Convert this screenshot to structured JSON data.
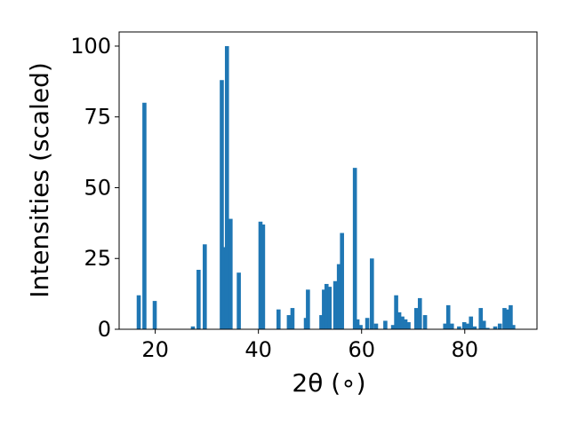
{
  "chart_data": {
    "type": "bar",
    "title": "",
    "xlabel": "2θ (∘)",
    "ylabel": "Intensities (scaled)",
    "xlim": [
      13,
      94
    ],
    "ylim": [
      0,
      105
    ],
    "x_ticks": [
      20,
      40,
      60,
      80
    ],
    "y_ticks": [
      0,
      25,
      50,
      75,
      100
    ],
    "bar_color": "#1f77b4",
    "grid": false,
    "series": [
      {
        "x": [
          16.8,
          17.9,
          19.9,
          27.3,
          28.4,
          29.6,
          32.9,
          33.3,
          33.9,
          34.6,
          36.2,
          40.4,
          40.9,
          43.9,
          45.9,
          46.6,
          49.2,
          49.6,
          52.2,
          52.7,
          53.2,
          53.8,
          54.9,
          55.6,
          56.2,
          58.7,
          59.2,
          59.8,
          61.1,
          62.0,
          62.8,
          64.6,
          66.1,
          66.7,
          67.3,
          67.9,
          68.5,
          69.1,
          70.6,
          71.3,
          72.3,
          76.2,
          76.8,
          77.5,
          78.9,
          79.9,
          80.5,
          81.2,
          81.9,
          83.1,
          83.7,
          84.4,
          85.9,
          86.8,
          87.7,
          88.3,
          88.9,
          89.4
        ],
        "y": [
          12,
          80,
          10,
          1,
          21,
          30,
          88,
          29,
          100,
          39,
          20,
          38,
          37,
          7,
          5,
          7.5,
          4,
          14,
          5,
          14,
          16,
          15,
          17,
          23,
          34,
          57,
          3.5,
          1.5,
          4,
          25,
          2,
          3,
          1.5,
          12,
          6,
          4.5,
          3.5,
          2.5,
          7.5,
          11,
          5,
          2,
          8.5,
          2,
          1,
          2.5,
          2,
          4.5,
          1,
          7.5,
          3,
          0.5,
          1,
          2,
          7.5,
          7,
          8.5,
          1.5
        ]
      }
    ]
  }
}
